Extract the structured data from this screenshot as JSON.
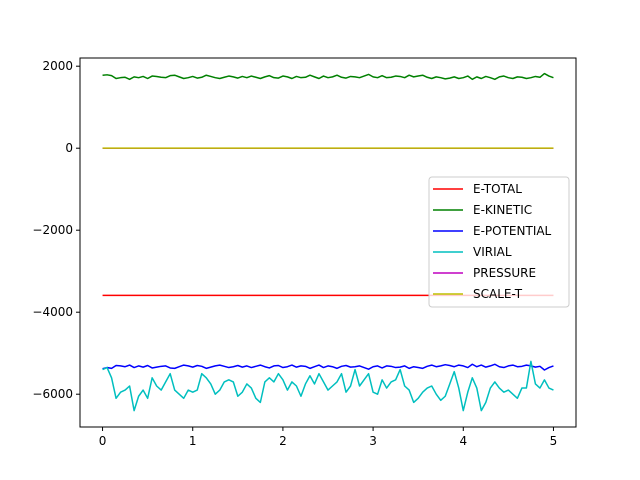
{
  "chart_data": {
    "type": "line",
    "title": "",
    "xlabel": "",
    "ylabel": "",
    "xlim": [
      -0.25,
      5.25
    ],
    "ylim": [
      -6800,
      2200
    ],
    "xticks": [
      0,
      1,
      2,
      3,
      4,
      5
    ],
    "yticks": [
      -6000,
      -4000,
      -2000,
      0,
      2000
    ],
    "xtick_labels": [
      "0",
      "1",
      "2",
      "3",
      "4",
      "5"
    ],
    "ytick_labels": [
      "−6000",
      "−4000",
      "−2000",
      "0",
      "2000"
    ],
    "grid": false,
    "legend_position": "right",
    "x": [
      0.0,
      0.05,
      0.1,
      0.15,
      0.2,
      0.25,
      0.3,
      0.35,
      0.4,
      0.45,
      0.5,
      0.55,
      0.6,
      0.65,
      0.7,
      0.75,
      0.8,
      0.85,
      0.9,
      0.95,
      1.0,
      1.05,
      1.1,
      1.15,
      1.2,
      1.25,
      1.3,
      1.35,
      1.4,
      1.45,
      1.5,
      1.55,
      1.6,
      1.65,
      1.7,
      1.75,
      1.8,
      1.85,
      1.9,
      1.95,
      2.0,
      2.05,
      2.1,
      2.15,
      2.2,
      2.25,
      2.3,
      2.35,
      2.4,
      2.45,
      2.5,
      2.55,
      2.6,
      2.65,
      2.7,
      2.75,
      2.8,
      2.85,
      2.9,
      2.95,
      3.0,
      3.05,
      3.1,
      3.15,
      3.2,
      3.25,
      3.3,
      3.35,
      3.4,
      3.45,
      3.5,
      3.55,
      3.6,
      3.65,
      3.7,
      3.75,
      3.8,
      3.85,
      3.9,
      3.95,
      4.0,
      4.05,
      4.1,
      4.15,
      4.2,
      4.25,
      4.3,
      4.35,
      4.4,
      4.45,
      4.5,
      4.55,
      4.6,
      4.65,
      4.7,
      4.75,
      4.8,
      4.85,
      4.9,
      4.95,
      5.0
    ],
    "series": [
      {
        "name": "E-TOTAL",
        "color": "#ff0000",
        "values": [
          -3590,
          -3590,
          -3590,
          -3590,
          -3590,
          -3590,
          -3590,
          -3590,
          -3590,
          -3590,
          -3590,
          -3590,
          -3590,
          -3590,
          -3590,
          -3590,
          -3590,
          -3590,
          -3590,
          -3590,
          -3590,
          -3590,
          -3590,
          -3590,
          -3590,
          -3590,
          -3590,
          -3590,
          -3590,
          -3590,
          -3590,
          -3590,
          -3590,
          -3590,
          -3590,
          -3590,
          -3590,
          -3590,
          -3590,
          -3590,
          -3590,
          -3590,
          -3590,
          -3590,
          -3590,
          -3590,
          -3590,
          -3590,
          -3590,
          -3590,
          -3590,
          -3590,
          -3590,
          -3590,
          -3590,
          -3590,
          -3590,
          -3590,
          -3590,
          -3590,
          -3590,
          -3590,
          -3590,
          -3590,
          -3590,
          -3590,
          -3590,
          -3590,
          -3590,
          -3590,
          -3590,
          -3590,
          -3590,
          -3590,
          -3590,
          -3590,
          -3590,
          -3590,
          -3590,
          -3590,
          -3590,
          -3590,
          -3590,
          -3590,
          -3590,
          -3590,
          -3590,
          -3590,
          -3590,
          -3590,
          -3590,
          -3590,
          -3590,
          -3590,
          -3590,
          -3590,
          -3590,
          -3590,
          -3590,
          -3590,
          -3590
        ]
      },
      {
        "name": "E-KINETIC",
        "color": "#008000",
        "values": [
          1780,
          1790,
          1770,
          1700,
          1720,
          1730,
          1680,
          1740,
          1720,
          1750,
          1700,
          1760,
          1750,
          1730,
          1720,
          1770,
          1780,
          1740,
          1700,
          1720,
          1750,
          1710,
          1730,
          1780,
          1750,
          1720,
          1700,
          1730,
          1760,
          1740,
          1710,
          1750,
          1720,
          1760,
          1730,
          1700,
          1740,
          1770,
          1720,
          1710,
          1760,
          1740,
          1700,
          1750,
          1720,
          1730,
          1780,
          1740,
          1700,
          1760,
          1720,
          1740,
          1780,
          1730,
          1710,
          1750,
          1740,
          1720,
          1760,
          1800,
          1740,
          1720,
          1770,
          1720,
          1730,
          1760,
          1750,
          1720,
          1780,
          1740,
          1760,
          1780,
          1730,
          1700,
          1740,
          1720,
          1690,
          1710,
          1740,
          1700,
          1720,
          1760,
          1680,
          1740,
          1700,
          1750,
          1720,
          1680,
          1740,
          1760,
          1720,
          1700,
          1740,
          1730,
          1700,
          1720,
          1750,
          1730,
          1820,
          1760,
          1720
        ]
      },
      {
        "name": "E-POTENTIAL",
        "color": "#0000ff",
        "values": [
          -5380,
          -5350,
          -5370,
          -5300,
          -5310,
          -5330,
          -5290,
          -5350,
          -5310,
          -5340,
          -5300,
          -5360,
          -5340,
          -5320,
          -5310,
          -5360,
          -5370,
          -5330,
          -5290,
          -5310,
          -5340,
          -5300,
          -5320,
          -5370,
          -5340,
          -5310,
          -5290,
          -5320,
          -5350,
          -5330,
          -5300,
          -5340,
          -5310,
          -5350,
          -5320,
          -5290,
          -5330,
          -5360,
          -5310,
          -5300,
          -5350,
          -5330,
          -5290,
          -5340,
          -5310,
          -5320,
          -5370,
          -5330,
          -5290,
          -5350,
          -5310,
          -5330,
          -5370,
          -5320,
          -5300,
          -5340,
          -5330,
          -5310,
          -5350,
          -5390,
          -5330,
          -5310,
          -5360,
          -5310,
          -5320,
          -5350,
          -5340,
          -5310,
          -5370,
          -5330,
          -5350,
          -5370,
          -5320,
          -5290,
          -5330,
          -5310,
          -5280,
          -5300,
          -5330,
          -5290,
          -5310,
          -5350,
          -5270,
          -5330,
          -5290,
          -5340,
          -5310,
          -5270,
          -5330,
          -5350,
          -5310,
          -5290,
          -5330,
          -5320,
          -5290,
          -5310,
          -5340,
          -5320,
          -5410,
          -5350,
          -5310
        ]
      },
      {
        "name": "VIRIAL",
        "color": "#00bfbf",
        "values": [
          -5400,
          -5350,
          -5600,
          -6100,
          -5950,
          -5900,
          -5800,
          -6400,
          -6050,
          -5900,
          -6100,
          -5600,
          -5800,
          -5900,
          -5700,
          -5500,
          -5900,
          -6000,
          -6100,
          -5900,
          -5950,
          -5900,
          -5500,
          -5600,
          -5750,
          -6000,
          -5900,
          -5700,
          -5650,
          -5700,
          -6050,
          -5950,
          -5750,
          -5850,
          -6100,
          -6200,
          -5700,
          -5600,
          -5700,
          -5500,
          -5650,
          -5900,
          -5700,
          -5800,
          -6050,
          -5750,
          -5550,
          -5750,
          -5500,
          -5700,
          -5900,
          -5800,
          -5700,
          -5500,
          -5950,
          -5800,
          -5400,
          -5800,
          -5650,
          -5500,
          -5950,
          -6000,
          -5650,
          -5850,
          -5700,
          -5650,
          -5400,
          -5800,
          -5900,
          -6200,
          -6100,
          -5950,
          -5850,
          -5800,
          -6000,
          -6150,
          -6050,
          -5750,
          -5450,
          -5850,
          -6400,
          -5950,
          -5600,
          -5850,
          -6400,
          -6200,
          -5850,
          -5700,
          -5850,
          -5950,
          -5900,
          -6000,
          -6100,
          -5850,
          -5850,
          -5200,
          -5750,
          -5850,
          -5650,
          -5850,
          -5900
        ]
      },
      {
        "name": "PRESSURE",
        "color": "#bf00bf",
        "values": [
          0,
          0,
          0,
          0,
          0,
          0,
          0,
          0,
          0,
          0,
          0,
          0,
          0,
          0,
          0,
          0,
          0,
          0,
          0,
          0,
          0,
          0,
          0,
          0,
          0,
          0,
          0,
          0,
          0,
          0,
          0,
          0,
          0,
          0,
          0,
          0,
          0,
          0,
          0,
          0,
          0,
          0,
          0,
          0,
          0,
          0,
          0,
          0,
          0,
          0,
          0,
          0,
          0,
          0,
          0,
          0,
          0,
          0,
          0,
          0,
          0,
          0,
          0,
          0,
          0,
          0,
          0,
          0,
          0,
          0,
          0,
          0,
          0,
          0,
          0,
          0,
          0,
          0,
          0,
          0,
          0,
          0,
          0,
          0,
          0,
          0,
          0,
          0,
          0,
          0,
          0,
          0,
          0,
          0,
          0,
          0,
          0,
          0,
          0,
          0,
          0
        ]
      },
      {
        "name": "SCALE-T",
        "color": "#bfbf00",
        "values": [
          1,
          1,
          1,
          1,
          1,
          1,
          1,
          1,
          1,
          1,
          1,
          1,
          1,
          1,
          1,
          1,
          1,
          1,
          1,
          1,
          1,
          1,
          1,
          1,
          1,
          1,
          1,
          1,
          1,
          1,
          1,
          1,
          1,
          1,
          1,
          1,
          1,
          1,
          1,
          1,
          1,
          1,
          1,
          1,
          1,
          1,
          1,
          1,
          1,
          1,
          1,
          1,
          1,
          1,
          1,
          1,
          1,
          1,
          1,
          1,
          1,
          1,
          1,
          1,
          1,
          1,
          1,
          1,
          1,
          1,
          1,
          1,
          1,
          1,
          1,
          1,
          1,
          1,
          1,
          1,
          1,
          1,
          1,
          1,
          1,
          1,
          1,
          1,
          1,
          1,
          1,
          1,
          1,
          1,
          1,
          1,
          1,
          1,
          1,
          1,
          1
        ]
      }
    ]
  }
}
